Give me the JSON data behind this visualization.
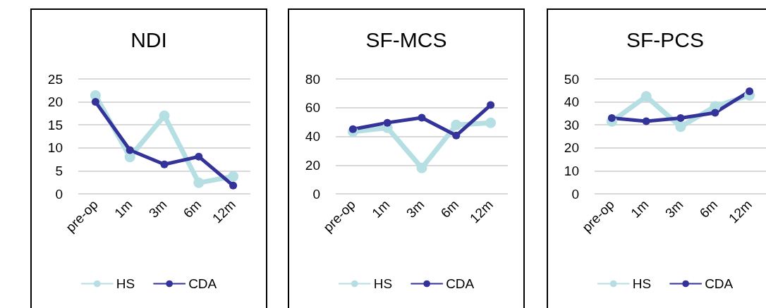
{
  "chart_data": [
    {
      "type": "line",
      "title": "NDI",
      "categories": [
        "pre-op",
        "1m",
        "3m",
        "6m",
        "12m"
      ],
      "series": [
        {
          "name": "HS",
          "color": "#b5dfe3",
          "values": [
            21.4,
            8,
            17,
            2.4,
            3.8
          ]
        },
        {
          "name": "CDA",
          "color": "#343399",
          "values": [
            20,
            9.5,
            6.4,
            8.1,
            1.8
          ]
        }
      ],
      "ylim": [
        0,
        25
      ],
      "yticks": [
        0,
        5,
        10,
        15,
        20,
        25
      ],
      "grid": "y",
      "legend": "bottom",
      "marker": "circle",
      "line_style": "solid"
    },
    {
      "type": "line",
      "title": "SF-MCS",
      "categories": [
        "pre-op",
        "1m",
        "3m",
        "6m",
        "12m"
      ],
      "series": [
        {
          "name": "HS",
          "color": "#b5dfe3",
          "values": [
            43.3,
            46,
            18,
            48,
            49.5
          ]
        },
        {
          "name": "CDA",
          "color": "#343399",
          "values": [
            45,
            49.5,
            53,
            40.6,
            61.8
          ]
        }
      ],
      "ylim": [
        0,
        80
      ],
      "yticks": [
        0,
        20,
        40,
        60,
        80
      ],
      "grid": "y",
      "legend": "bottom",
      "marker": "circle",
      "line_style": "solid"
    },
    {
      "type": "line",
      "title": "SF-PCS",
      "categories": [
        "pre-op",
        "1m",
        "3m",
        "6m",
        "12m"
      ],
      "series": [
        {
          "name": "HS",
          "color": "#b5dfe3",
          "values": [
            31.5,
            42.4,
            29.2,
            38,
            42.9
          ]
        },
        {
          "name": "CDA",
          "color": "#343399",
          "values": [
            33,
            31.6,
            33,
            35.3,
            44.6
          ]
        }
      ],
      "ylim": [
        0,
        50
      ],
      "yticks": [
        0,
        10,
        20,
        30,
        40,
        50
      ],
      "grid": "y",
      "legend": "bottom",
      "marker": "circle",
      "line_style": "solid"
    }
  ]
}
